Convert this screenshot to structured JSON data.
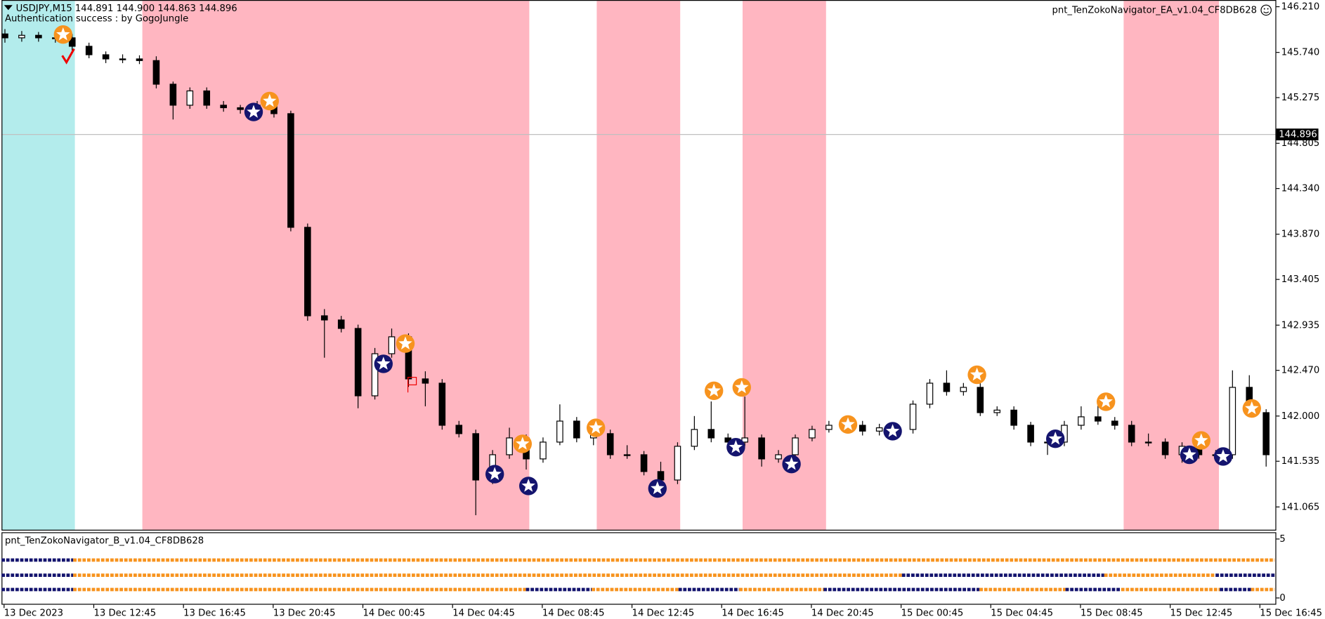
{
  "chart_data": {
    "type": "candlestick",
    "header": "USDJPY,M15  144.891 144.900 144.863 144.896",
    "subtitle": "Authentication success : by GogoJungle",
    "ea_name": "pnt_TenZokoNavigator_EA_v1.04_CF8DB628",
    "current_price": 144.896,
    "ylim": [
      140.822,
      146.279
    ],
    "yticks": [
      {
        "value": 146.21,
        "label": "146.210"
      },
      {
        "value": 145.74,
        "label": "145.740"
      },
      145.275,
      144.805,
      {
        "value": 144.34,
        "label": "144.340"
      },
      {
        "value": 143.87,
        "label": "143.870"
      },
      143.405,
      142.935,
      {
        "value": 142.47,
        "label": "142.470"
      },
      {
        "value": 142,
        "label": "142.000"
      },
      141.535,
      141.065
    ],
    "x_labels": [
      "13 Dec 2023",
      "13 Dec 12:45",
      "13 Dec 16:45",
      "13 Dec 20:45",
      "14 Dec 00:45",
      "14 Dec 04:45",
      "14 Dec 08:45",
      "14 Dec 12:45",
      "14 Dec 16:45",
      "14 Dec 20:45",
      "15 Dec 00:45",
      "15 Dec 04:45",
      "15 Dec 08:45",
      "15 Dec 12:45",
      "15 Dec 16:45"
    ],
    "open": [
      145.93,
      145.89,
      145.916,
      145.89,
      145.89,
      145.803,
      145.716,
      145.673,
      145.673,
      145.656,
      145.413,
      145.197,
      145.344,
      145.197,
      145.171,
      145.153,
      145.197,
      145.11,
      143.941,
      143.031,
      142.988,
      142.901,
      142.208,
      142.641,
      142.815,
      142.382,
      142.338,
      141.905,
      141.819,
      141.342,
      141.602,
      141.775,
      141.559,
      141.732,
      141.948,
      141.775,
      141.819,
      141.602,
      141.602,
      141.429,
      141.342,
      141.689,
      141.862,
      141.775,
      141.732,
      141.775,
      141.559,
      141.602,
      141.775,
      141.862,
      141.905,
      141.905,
      141.845,
      141.879,
      141.862,
      142.122,
      142.338,
      142.252,
      142.295,
      142.035,
      142.061,
      141.905,
      141.732,
      141.732,
      141.905,
      141.992,
      141.948,
      141.905,
      141.732,
      141.732,
      141.602,
      141.689,
      141.602,
      141.602,
      142.295,
      142.035
    ],
    "high": [
      145.98,
      145.96,
      145.95,
      145.94,
      145.93,
      145.84,
      145.75,
      145.72,
      145.71,
      145.7,
      145.44,
      145.38,
      145.38,
      145.24,
      145.2,
      145.24,
      145.25,
      145.14,
      143.98,
      143.1,
      143.03,
      142.94,
      142.7,
      142.9,
      142.85,
      142.46,
      142.38,
      141.95,
      141.86,
      141.65,
      141.88,
      141.81,
      141.78,
      142.12,
      141.99,
      141.86,
      141.86,
      141.7,
      141.64,
      141.53,
      141.73,
      142.0,
      142.15,
      141.82,
      142.2,
      141.81,
      141.65,
      141.81,
      141.9,
      141.95,
      141.95,
      141.95,
      141.92,
      141.92,
      142.16,
      142.38,
      142.47,
      142.34,
      142.34,
      142.1,
      142.1,
      141.94,
      141.78,
      141.95,
      142.1,
      142.15,
      141.99,
      141.95,
      141.82,
      141.77,
      141.73,
      141.78,
      141.65,
      142.47,
      142.42,
      142.07
    ],
    "low": [
      145.84,
      145.85,
      145.85,
      145.84,
      145.76,
      145.68,
      145.63,
      145.63,
      145.62,
      145.37,
      145.05,
      145.16,
      145.16,
      145.13,
      145.11,
      145.11,
      145.07,
      143.9,
      142.98,
      142.6,
      142.86,
      142.08,
      142.17,
      142.6,
      142.3,
      142.1,
      141.86,
      141.78,
      140.98,
      141.3,
      141.56,
      141.45,
      141.52,
      141.7,
      141.73,
      141.7,
      141.56,
      141.56,
      141.39,
      141.3,
      141.3,
      141.65,
      141.73,
      141.69,
      141.69,
      141.48,
      141.52,
      141.56,
      141.74,
      141.83,
      141.86,
      141.8,
      141.8,
      141.82,
      141.82,
      142.08,
      142.21,
      142.21,
      142.0,
      142.0,
      141.86,
      141.69,
      141.6,
      141.69,
      141.86,
      141.91,
      141.86,
      141.69,
      141.69,
      141.56,
      141.52,
      141.56,
      141.56,
      141.56,
      142.0,
      141.48
    ],
    "close": [
      145.89,
      145.916,
      145.89,
      145.89,
      145.803,
      145.716,
      145.673,
      145.673,
      145.656,
      145.413,
      145.197,
      145.344,
      145.197,
      145.171,
      145.153,
      145.197,
      145.11,
      143.941,
      143.031,
      142.988,
      142.901,
      142.208,
      142.641,
      142.815,
      142.382,
      142.338,
      141.905,
      141.819,
      141.342,
      141.602,
      141.775,
      141.559,
      141.732,
      141.948,
      141.775,
      141.819,
      141.602,
      141.602,
      141.429,
      141.342,
      141.689,
      141.862,
      141.775,
      141.732,
      141.775,
      141.559,
      141.602,
      141.775,
      141.862,
      141.905,
      141.905,
      141.845,
      141.879,
      141.862,
      142.122,
      142.338,
      142.252,
      142.295,
      142.035,
      142.061,
      141.905,
      141.732,
      141.732,
      141.905,
      141.992,
      141.948,
      141.905,
      141.732,
      141.732,
      141.602,
      141.689,
      141.602,
      141.602,
      142.295,
      142.035,
      141.602
    ],
    "indicator": {
      "title": "pnt_TenZokoNavigator_B_v1.04_CF8DB628",
      "ylim": [
        0,
        5
      ],
      "yticks": [
        0,
        5
      ]
    }
  }
}
